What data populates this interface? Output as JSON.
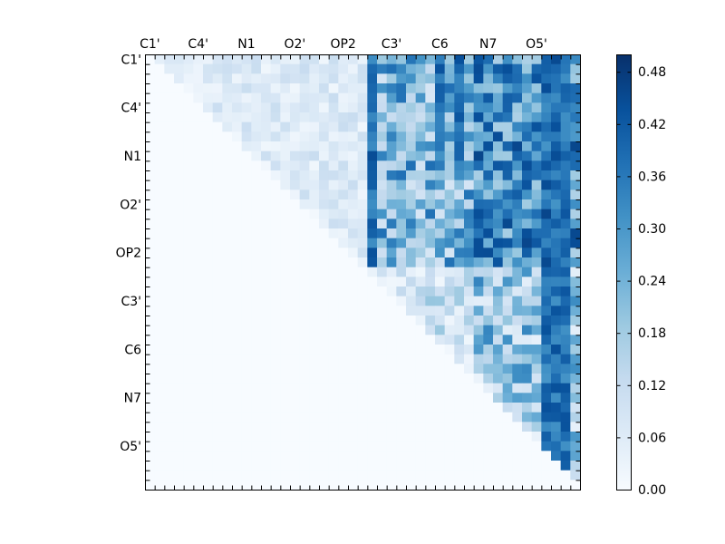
{
  "chart_data": {
    "type": "heatmap",
    "title": "",
    "xlabel": "",
    "ylabel": "",
    "grid_size": 45,
    "x_tick_labels": [
      "C1'",
      "C4'",
      "N1",
      "O2'",
      "OP2",
      "C3'",
      "C6",
      "N7",
      "O5'"
    ],
    "y_tick_labels": [
      "C1'",
      "C4'",
      "N1",
      "O2'",
      "OP2",
      "C3'",
      "C6",
      "N7",
      "O5'"
    ],
    "label_step": 5,
    "colormap": "Blues",
    "colorbar": {
      "ticks": [
        "0.00",
        "0.06",
        "0.12",
        "0.18",
        "0.24",
        "0.30",
        "0.36",
        "0.42",
        "0.48"
      ],
      "min": 0.0,
      "max": 0.5
    },
    "upper_triangle_only": true
  },
  "colors": {
    "low": "#f7fbff",
    "mid": "#6baed6",
    "high": "#08306b"
  }
}
